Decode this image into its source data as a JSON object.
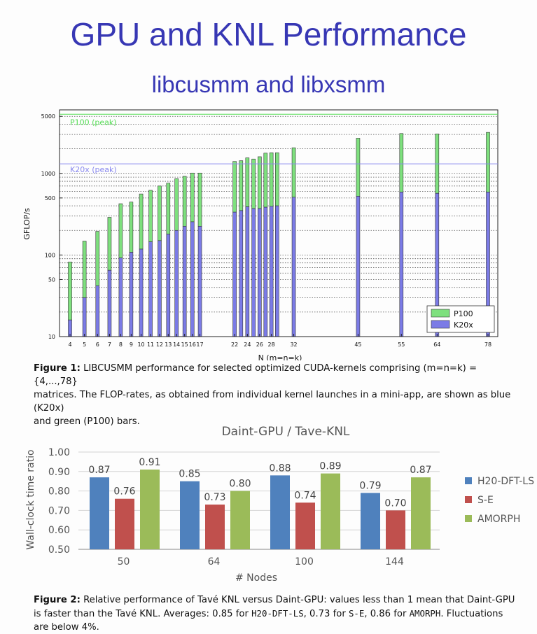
{
  "slide": {
    "title": "GPU and KNL Performance",
    "subtitle": "libcusmm and libxsmm"
  },
  "figure1": {
    "caption_label": "Figure 1:",
    "caption_line1": "LIBCUSMM performance for selected optimized CUDA-kernels comprising (m=n=k) = {4,...,78}",
    "caption_line2": "matrices. The FLOP-rates, as obtained from individual kernel launches in a mini-app, are shown as blue (K20x)",
    "caption_line3": "and green (P100) bars."
  },
  "figure2": {
    "caption_label": "Figure 2:",
    "caption_part1": "Relative performance of Tavé KNL versus Daint-GPU: values less than 1 mean that Daint-GPU",
    "caption_part2": "is faster than the Tavé KNL. Averages: 0.85 for ",
    "code1": "H20-DFT-LS",
    "sep1": ", 0.73 for ",
    "code2": "S-E",
    "sep2": ", 0.86 for ",
    "code3": "AMORPH",
    "caption_part3": ". Fluctuations",
    "caption_part4": "are below 4%."
  },
  "chart_data": [
    {
      "type": "bar",
      "title": "",
      "xlabel": "N (m=n=k)",
      "ylabel": "GFLOP/s",
      "yscale": "log",
      "ylim": [
        10,
        6000
      ],
      "ytick_labels": [
        "10",
        "50",
        "100",
        "500",
        "1000",
        "5000"
      ],
      "grid": true,
      "legend_position": "bottom-right",
      "x": [
        4,
        5,
        6,
        7,
        8,
        9,
        10,
        11,
        12,
        13,
        14,
        15,
        16,
        17,
        22,
        23,
        24,
        25,
        26,
        27,
        28,
        29,
        32,
        45,
        55,
        64,
        78
      ],
      "xtick_labels": [
        "4",
        "5",
        "6",
        "7",
        "8",
        "9",
        "10",
        "11",
        "12",
        "13",
        "14",
        "15",
        "16",
        "17",
        "22",
        "24",
        "26",
        "28",
        "32",
        "45",
        "55",
        "64",
        "78"
      ],
      "series": [
        {
          "name": "K20x",
          "color": "#7b7be6",
          "values": [
            16,
            30,
            42,
            65,
            92,
            108,
            118,
            145,
            150,
            180,
            200,
            225,
            255,
            225,
            335,
            350,
            390,
            370,
            370,
            385,
            395,
            400,
            510,
            525,
            590,
            570,
            590
          ]
        },
        {
          "name": "P100",
          "color": "#7ee07e",
          "values": [
            82,
            148,
            195,
            290,
            425,
            445,
            560,
            620,
            700,
            760,
            860,
            920,
            1010,
            1010,
            1400,
            1430,
            1550,
            1500,
            1600,
            1770,
            1790,
            1790,
            2060,
            2700,
            3080,
            3040,
            3180
          ]
        }
      ],
      "reference_lines": [
        {
          "label": "P100 (peak)",
          "value": 5300,
          "color": "#55dd55"
        },
        {
          "label": "K20x (peak)",
          "value": 1310,
          "color": "#8888ee"
        }
      ]
    },
    {
      "type": "bar",
      "title": "Daint-GPU / Tave-KNL",
      "xlabel": "# Nodes",
      "ylabel": "Wall-clock time ratio",
      "ylim": [
        0.5,
        1.0
      ],
      "ytick_labels": [
        "0.50",
        "0.60",
        "0.70",
        "0.80",
        "0.90",
        "1.00"
      ],
      "grid": true,
      "legend_position": "right",
      "categories": [
        "50",
        "64",
        "100",
        "144"
      ],
      "series": [
        {
          "name": "H20-DFT-LS",
          "color": "#4f81bd",
          "values": [
            0.87,
            0.85,
            0.88,
            0.79
          ],
          "labels": [
            "0.87",
            "0.85",
            "0.88",
            "0.79"
          ]
        },
        {
          "name": "S-E",
          "color": "#c0504d",
          "values": [
            0.76,
            0.73,
            0.74,
            0.7
          ],
          "labels": [
            "0.76",
            "0.73",
            "0.74",
            "0.70"
          ]
        },
        {
          "name": "AMORPH",
          "color": "#9bbb59",
          "values": [
            0.91,
            0.8,
            0.89,
            0.87
          ],
          "labels": [
            "0.91",
            "0.80",
            "0.89",
            "0.87"
          ]
        }
      ]
    }
  ]
}
